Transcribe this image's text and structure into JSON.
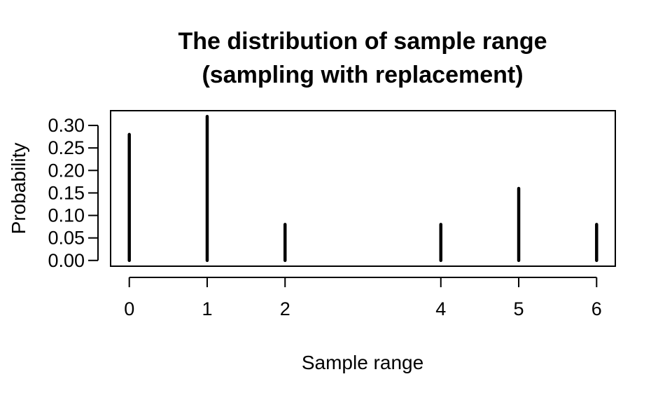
{
  "chart_data": {
    "type": "bar",
    "title_line1": "The distribution of sample range",
    "title_line2": "(sampling with replacement)",
    "xlabel": "Sample range",
    "ylabel": "Probability",
    "x": [
      0,
      1,
      2,
      4,
      5,
      6
    ],
    "values": [
      0.28,
      0.32,
      0.08,
      0.08,
      0.16,
      0.08
    ],
    "xlim": [
      -0.24,
      6.24
    ],
    "ylim": [
      -0.0128,
      0.3328
    ],
    "x_ticks": [
      0,
      1,
      2,
      4,
      5,
      6
    ],
    "x_tick_labels": [
      "0",
      "1",
      "2",
      "4",
      "5",
      "6"
    ],
    "y_ticks": [
      0.0,
      0.05,
      0.1,
      0.15,
      0.2,
      0.25,
      0.3
    ],
    "y_tick_labels": [
      "0.00",
      "0.05",
      "0.10",
      "0.15",
      "0.20",
      "0.25",
      "0.30"
    ],
    "grid": false,
    "bar_color": "#000000"
  }
}
